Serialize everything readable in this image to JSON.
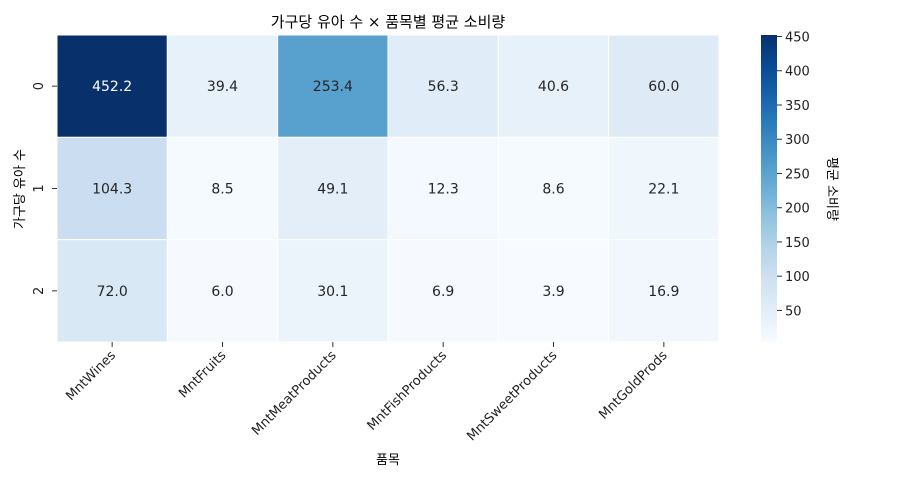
{
  "chart_data": {
    "type": "heatmap",
    "title": "가구당 유아 수 × 품목별 평균 소비량",
    "xlabel": "품목",
    "ylabel": "가구당 유아 수",
    "x_categories": [
      "MntWines",
      "MntFruits",
      "MntMeatProducts",
      "MntFishProducts",
      "MntSweetProducts",
      "MntGoldProds"
    ],
    "y_categories": [
      "0",
      "1",
      "2"
    ],
    "values": [
      [
        452.2,
        39.4,
        253.4,
        56.3,
        40.6,
        60.0
      ],
      [
        104.3,
        8.5,
        49.1,
        12.3,
        8.6,
        22.1
      ],
      [
        72.0,
        6.0,
        30.1,
        6.9,
        3.9,
        16.9
      ]
    ],
    "value_labels": [
      [
        "452.2",
        "39.4",
        "253.4",
        "56.3",
        "40.6",
        "60.0"
      ],
      [
        "104.3",
        "8.5",
        "49.1",
        "12.3",
        "8.6",
        "22.1"
      ],
      [
        "72.0",
        "6.0",
        "30.1",
        "6.9",
        "3.9",
        "16.9"
      ]
    ],
    "colorbar": {
      "label": "평균 소비량",
      "range": [
        3.9,
        452.2
      ],
      "ticks": [
        "50",
        "100",
        "150",
        "200",
        "250",
        "300",
        "350",
        "400",
        "450"
      ],
      "colormap": "Blues"
    }
  }
}
